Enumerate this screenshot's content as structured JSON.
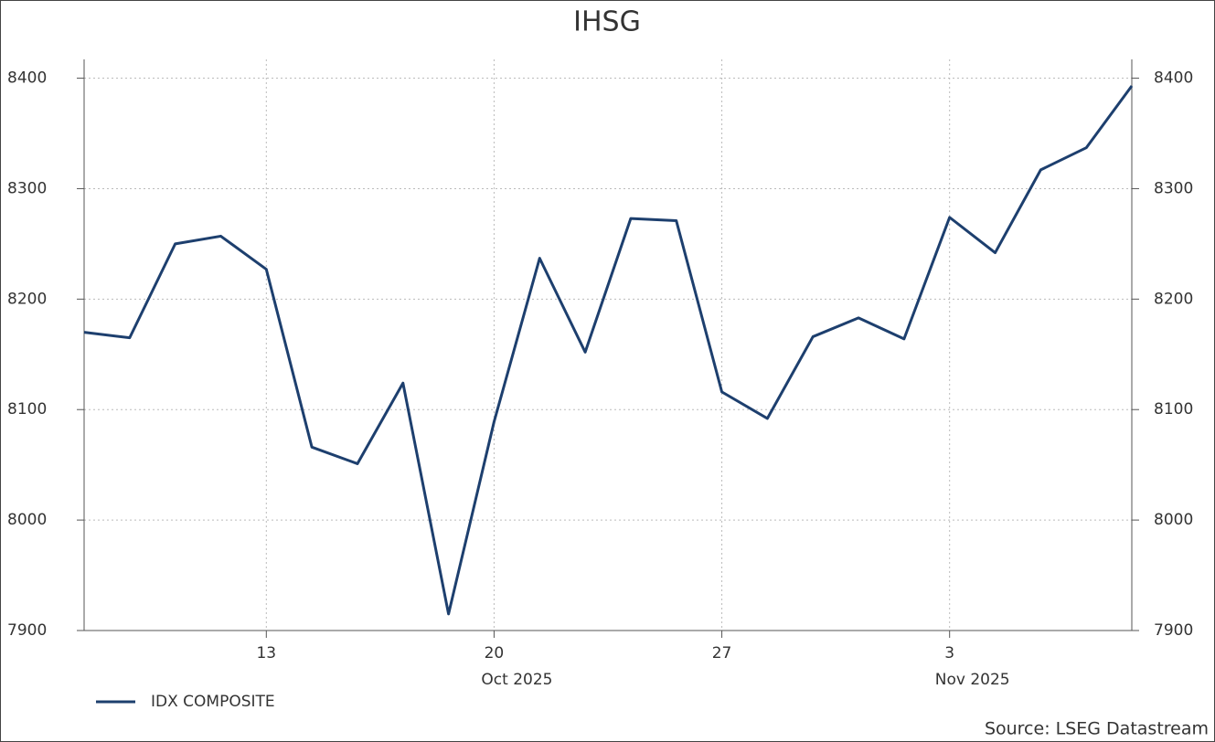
{
  "chart_data": {
    "type": "line",
    "title": "IHSG",
    "categories": [
      null,
      null,
      null,
      null,
      "13",
      null,
      null,
      null,
      null,
      "20",
      null,
      null,
      null,
      null,
      "27",
      null,
      null,
      null,
      null,
      "3",
      null,
      null,
      null,
      null
    ],
    "x_sublabels": [
      null,
      null,
      null,
      null,
      null,
      null,
      null,
      null,
      null,
      "Oct 2025",
      null,
      null,
      null,
      null,
      null,
      null,
      null,
      null,
      null,
      "Nov 2025",
      null,
      null,
      null,
      null
    ],
    "series": [
      {
        "name": "IDX COMPOSITE",
        "color": "#1d3f6e",
        "values": [
          8170,
          8165,
          8250,
          8257,
          8227,
          8066,
          8051,
          8124,
          7915,
          8089,
          8237,
          8152,
          8273,
          8271,
          8116,
          8092,
          8166,
          8183,
          8164,
          8274,
          8242,
          8317,
          8337,
          8393
        ]
      }
    ],
    "ylim": [
      7900,
      8417
    ],
    "yticks": [
      7900,
      8000,
      8100,
      8200,
      8300,
      8400
    ],
    "y2lim": [
      7900,
      8417
    ],
    "y2ticks": [
      7900,
      8000,
      8100,
      8200,
      8300,
      8400
    ],
    "grid": true,
    "legend": "bottom-left",
    "source": "Source: LSEG Datastream"
  }
}
